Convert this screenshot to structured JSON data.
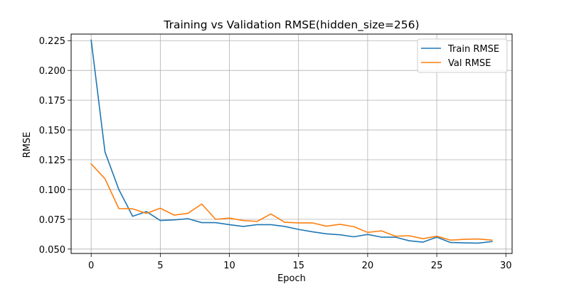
{
  "chart_data": {
    "type": "line",
    "title": "Training vs Validation RMSE(hidden_size=256)",
    "xlabel": "Epoch",
    "ylabel": "RMSE",
    "xlim": [
      -1.45,
      30.45
    ],
    "ylim": [
      0.0463,
      0.2305
    ],
    "x_ticks": [
      0,
      5,
      10,
      15,
      20,
      25,
      30
    ],
    "y_ticks": [
      0.05,
      0.075,
      0.1,
      0.125,
      0.15,
      0.175,
      0.2,
      0.225
    ],
    "y_tick_labels": [
      "0.050",
      "0.075",
      "0.100",
      "0.125",
      "0.150",
      "0.175",
      "0.200",
      "0.225"
    ],
    "grid": true,
    "legend_position": "top-right",
    "x": [
      0,
      1,
      2,
      3,
      4,
      5,
      6,
      7,
      8,
      9,
      10,
      11,
      12,
      13,
      14,
      15,
      16,
      17,
      18,
      19,
      20,
      21,
      22,
      23,
      24,
      25,
      26,
      27,
      28,
      29
    ],
    "series": [
      {
        "name": "Train RMSE",
        "color": "#1f77b4",
        "values": [
          0.2255,
          0.1315,
          0.1,
          0.0775,
          0.0815,
          0.074,
          0.0745,
          0.0755,
          0.0722,
          0.0722,
          0.0705,
          0.069,
          0.0705,
          0.0705,
          0.069,
          0.0665,
          0.0645,
          0.0628,
          0.062,
          0.0603,
          0.0623,
          0.06,
          0.06,
          0.057,
          0.0558,
          0.06,
          0.0555,
          0.0552,
          0.055,
          0.0563
        ]
      },
      {
        "name": "Val RMSE",
        "color": "#ff7f0e",
        "values": [
          0.1215,
          0.109,
          0.084,
          0.0838,
          0.08,
          0.0843,
          0.0785,
          0.08,
          0.0878,
          0.075,
          0.076,
          0.074,
          0.0732,
          0.0795,
          0.0725,
          0.072,
          0.072,
          0.0692,
          0.0708,
          0.0688,
          0.064,
          0.0653,
          0.0608,
          0.0612,
          0.0587,
          0.0608,
          0.0575,
          0.0582,
          0.0585,
          0.0575
        ]
      }
    ]
  }
}
